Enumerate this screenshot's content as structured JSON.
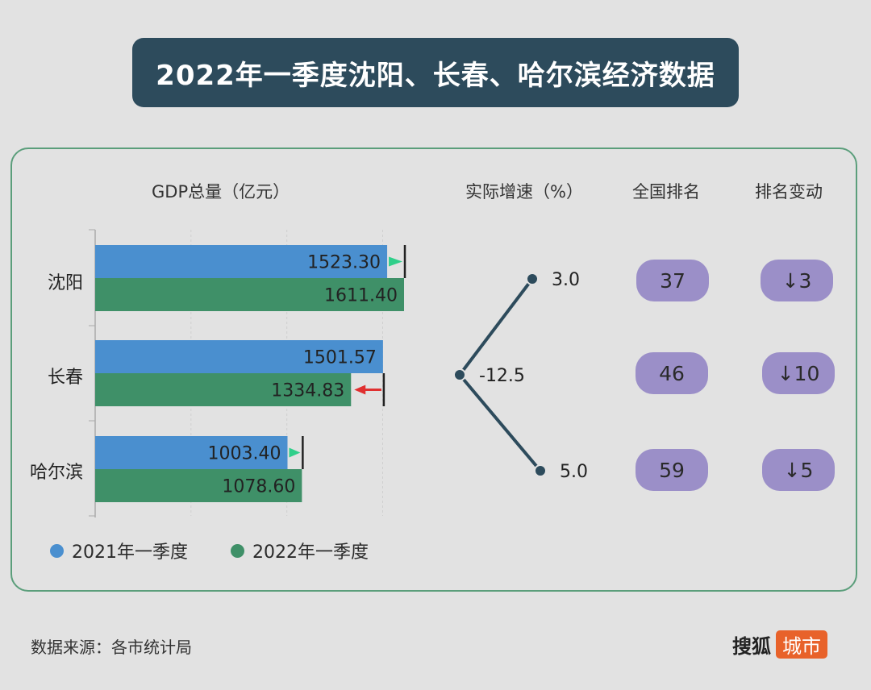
{
  "title": "2022年一季度沈阳、长春、哈尔滨经济数据",
  "headers": {
    "gdp": "GDP总量（亿元）",
    "growth": "实际增速（%）",
    "rank": "全国排名",
    "rank_change": "排名变动"
  },
  "chart_data": {
    "type": "bar",
    "orientation": "horizontal",
    "categories": [
      "沈阳",
      "长春",
      "哈尔滨"
    ],
    "series": [
      {
        "name": "2021年一季度",
        "color": "#4a8fcf",
        "values": [
          1523.3,
          1501.57,
          1003.4
        ],
        "labels": [
          "1523.30",
          "1501.57",
          "1003.40"
        ]
      },
      {
        "name": "2022年一季度",
        "color": "#3f9068",
        "values": [
          1611.4,
          1334.83,
          1078.6
        ],
        "labels": [
          "1611.40",
          "1334.83",
          "1078.60"
        ]
      }
    ],
    "xlim": [
      0,
      1611.4
    ],
    "gridlines": [
      500,
      1000,
      1500
    ],
    "change_arrows": [
      {
        "city": "沈阳",
        "direction": "up",
        "color": "#2fcf8a"
      },
      {
        "city": "长春",
        "direction": "down",
        "color": "#e03030"
      },
      {
        "city": "哈尔滨",
        "direction": "up",
        "color": "#2fcf8a"
      }
    ],
    "legend": "bottom-left",
    "growth": {
      "values": [
        "3.0",
        "-12.5",
        "5.0"
      ],
      "line_color": "#2d4b5c"
    }
  },
  "ranking": [
    {
      "city": "沈阳",
      "rank": "37",
      "change": "↓3"
    },
    {
      "city": "长春",
      "rank": "46",
      "change": "↓10"
    },
    {
      "city": "哈尔滨",
      "rank": "59",
      "change": "↓5"
    }
  ],
  "source": "数据来源：各市统计局",
  "logo": {
    "brand": "搜狐",
    "tag": "城市"
  }
}
